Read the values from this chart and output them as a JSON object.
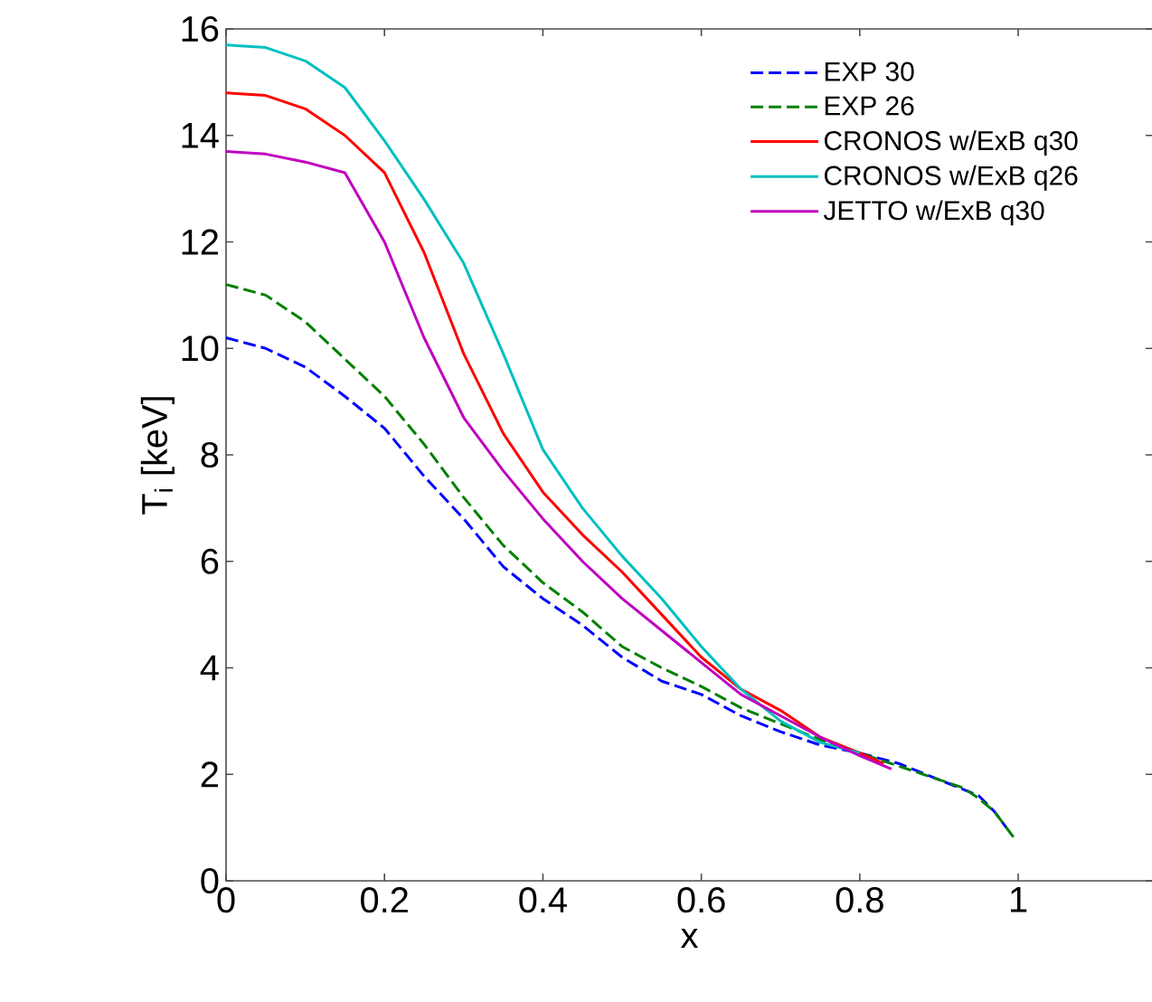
{
  "chart_data": {
    "type": "line",
    "xlabel": "x",
    "ylabel": "T$_{i}$ [keV]",
    "xlim": [
      0,
      1.17
    ],
    "ylim": [
      0,
      16
    ],
    "xticks": [
      0,
      0.2,
      0.4,
      0.6,
      0.8,
      1
    ],
    "yticks": [
      0,
      2,
      4,
      6,
      8,
      10,
      12,
      14,
      16
    ],
    "grid": false,
    "legend": "top right",
    "series": [
      {
        "name": "EXP 30",
        "color": "#0000ff",
        "line_style": "dashed",
        "x": [
          0,
          0.05,
          0.1,
          0.15,
          0.2,
          0.25,
          0.3,
          0.35,
          0.4,
          0.45,
          0.5,
          0.55,
          0.6,
          0.65,
          0.7,
          0.75,
          0.8,
          0.85,
          0.9,
          0.95,
          0.97,
          0.985
        ],
        "values": [
          10.2,
          10.0,
          9.65,
          9.1,
          8.5,
          7.6,
          6.8,
          5.9,
          5.3,
          4.8,
          4.2,
          3.75,
          3.5,
          3.1,
          2.8,
          2.55,
          2.4,
          2.2,
          1.9,
          1.6,
          1.3,
          1.0
        ]
      },
      {
        "name": "EXP 26",
        "color": "#008000",
        "line_style": "dashed",
        "x": [
          0,
          0.05,
          0.1,
          0.15,
          0.2,
          0.25,
          0.3,
          0.35,
          0.4,
          0.45,
          0.5,
          0.55,
          0.6,
          0.65,
          0.7,
          0.75,
          0.8,
          0.85,
          0.9,
          0.93,
          0.95,
          0.97,
          0.995
        ],
        "values": [
          11.2,
          11.0,
          10.5,
          9.8,
          9.1,
          8.2,
          7.2,
          6.3,
          5.6,
          5.05,
          4.4,
          4.0,
          3.65,
          3.25,
          2.95,
          2.65,
          2.4,
          2.15,
          1.9,
          1.75,
          1.55,
          1.3,
          0.8
        ]
      },
      {
        "name": "CRONOS w/ExB q30",
        "color": "#ff0000",
        "line_style": "solid",
        "x": [
          0,
          0.05,
          0.1,
          0.15,
          0.2,
          0.25,
          0.3,
          0.35,
          0.4,
          0.45,
          0.5,
          0.55,
          0.6,
          0.65,
          0.7,
          0.75,
          0.8,
          0.83
        ],
        "values": [
          14.8,
          14.75,
          14.5,
          14.0,
          13.3,
          11.8,
          9.9,
          8.4,
          7.3,
          6.5,
          5.8,
          5.0,
          4.2,
          3.6,
          3.2,
          2.7,
          2.4,
          2.2
        ]
      },
      {
        "name": "CRONOS w/ExB q26",
        "color": "#00bfbf",
        "line_style": "solid",
        "x": [
          0,
          0.05,
          0.1,
          0.15,
          0.2,
          0.25,
          0.3,
          0.35,
          0.4,
          0.45,
          0.5,
          0.55,
          0.6,
          0.65,
          0.7,
          0.75,
          0.8
        ],
        "values": [
          15.7,
          15.65,
          15.4,
          14.9,
          13.9,
          12.8,
          11.6,
          9.9,
          8.1,
          7.0,
          6.1,
          5.3,
          4.4,
          3.6,
          3.0,
          2.6,
          2.4
        ]
      },
      {
        "name": "JETTO w/ExB q30",
        "color": "#bf00bf",
        "line_style": "solid",
        "x": [
          0,
          0.05,
          0.1,
          0.15,
          0.2,
          0.25,
          0.3,
          0.35,
          0.4,
          0.45,
          0.5,
          0.55,
          0.6,
          0.65,
          0.7,
          0.75,
          0.8,
          0.84
        ],
        "values": [
          13.7,
          13.65,
          13.5,
          13.3,
          12.0,
          10.2,
          8.7,
          7.7,
          6.8,
          6.0,
          5.3,
          4.7,
          4.1,
          3.5,
          3.1,
          2.7,
          2.35,
          2.1
        ]
      }
    ]
  }
}
